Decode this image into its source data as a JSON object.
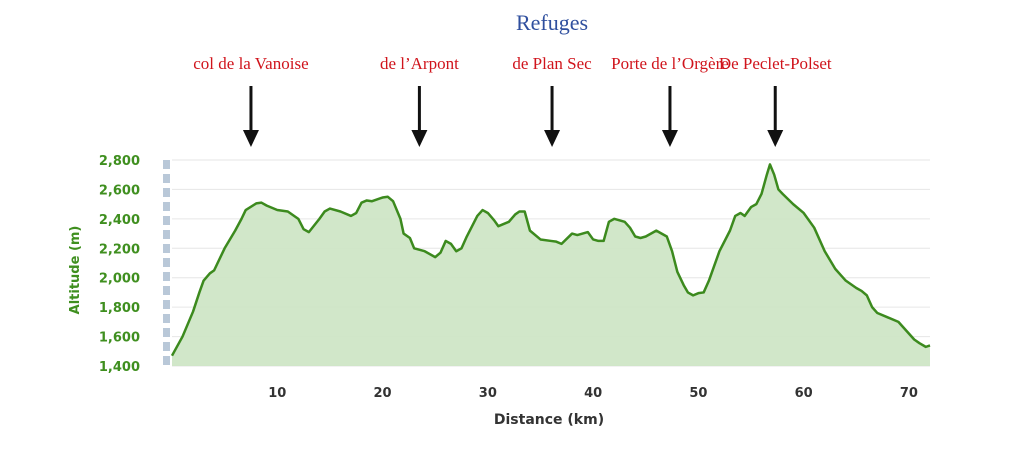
{
  "chart_data": {
    "type": "area",
    "title": "Refuges",
    "xlabel": "Distance (km)",
    "ylabel": "Altitude (m)",
    "xlim": [
      0,
      72
    ],
    "ylim": [
      1400,
      2800
    ],
    "x_ticks": [
      10,
      20,
      30,
      40,
      50,
      60,
      70
    ],
    "x_tick_labels": [
      "10",
      "20",
      "30",
      "40",
      "50",
      "60",
      "70"
    ],
    "y_ticks": [
      1400,
      1600,
      1800,
      2000,
      2200,
      2400,
      2600,
      2800
    ],
    "y_tick_labels": [
      "1,400",
      "1,600",
      "1,800",
      "2,000",
      "2,200",
      "2,400",
      "2,600",
      "2,800"
    ],
    "grid": true,
    "line_color": "#3c8a1e",
    "fill_color": "#cfe6c6",
    "points": [
      [
        0,
        1470
      ],
      [
        1,
        1600
      ],
      [
        2,
        1770
      ],
      [
        2.6,
        1900
      ],
      [
        3,
        1980
      ],
      [
        3.6,
        2030
      ],
      [
        4,
        2050
      ],
      [
        5,
        2200
      ],
      [
        6,
        2320
      ],
      [
        6.6,
        2400
      ],
      [
        7,
        2460
      ],
      [
        8,
        2505
      ],
      [
        8.5,
        2510
      ],
      [
        9,
        2490
      ],
      [
        10,
        2460
      ],
      [
        11,
        2450
      ],
      [
        12,
        2400
      ],
      [
        12.5,
        2330
      ],
      [
        13,
        2310
      ],
      [
        14,
        2400
      ],
      [
        14.5,
        2450
      ],
      [
        15,
        2470
      ],
      [
        16,
        2450
      ],
      [
        17,
        2420
      ],
      [
        17.5,
        2440
      ],
      [
        18,
        2510
      ],
      [
        18.5,
        2525
      ],
      [
        19,
        2520
      ],
      [
        20,
        2545
      ],
      [
        20.5,
        2550
      ],
      [
        21,
        2520
      ],
      [
        21.7,
        2400
      ],
      [
        22,
        2300
      ],
      [
        22.6,
        2270
      ],
      [
        23,
        2200
      ],
      [
        24,
        2180
      ],
      [
        25,
        2140
      ],
      [
        25.5,
        2170
      ],
      [
        26,
        2250
      ],
      [
        26.5,
        2230
      ],
      [
        27,
        2180
      ],
      [
        27.5,
        2200
      ],
      [
        28,
        2280
      ],
      [
        29,
        2420
      ],
      [
        29.5,
        2460
      ],
      [
        30,
        2440
      ],
      [
        30.6,
        2390
      ],
      [
        31,
        2350
      ],
      [
        32,
        2380
      ],
      [
        32.6,
        2430
      ],
      [
        33,
        2450
      ],
      [
        33.5,
        2450
      ],
      [
        34,
        2320
      ],
      [
        35,
        2260
      ],
      [
        36,
        2250
      ],
      [
        36.5,
        2245
      ],
      [
        37,
        2230
      ],
      [
        38,
        2300
      ],
      [
        38.5,
        2290
      ],
      [
        39,
        2300
      ],
      [
        39.5,
        2310
      ],
      [
        40,
        2260
      ],
      [
        40.5,
        2250
      ],
      [
        41,
        2250
      ],
      [
        41.5,
        2380
      ],
      [
        42,
        2400
      ],
      [
        42.5,
        2390
      ],
      [
        43,
        2380
      ],
      [
        43.5,
        2340
      ],
      [
        44,
        2280
      ],
      [
        44.5,
        2270
      ],
      [
        45,
        2280
      ],
      [
        46,
        2320
      ],
      [
        47,
        2280
      ],
      [
        47.5,
        2180
      ],
      [
        48,
        2040
      ],
      [
        48.6,
        1950
      ],
      [
        49,
        1900
      ],
      [
        49.5,
        1880
      ],
      [
        50,
        1895
      ],
      [
        50.5,
        1900
      ],
      [
        51,
        1980
      ],
      [
        51.5,
        2080
      ],
      [
        52,
        2180
      ],
      [
        53,
        2320
      ],
      [
        53.5,
        2420
      ],
      [
        54,
        2440
      ],
      [
        54.4,
        2420
      ],
      [
        55,
        2480
      ],
      [
        55.5,
        2500
      ],
      [
        56,
        2570
      ],
      [
        56.5,
        2700
      ],
      [
        56.8,
        2770
      ],
      [
        57.2,
        2700
      ],
      [
        57.6,
        2600
      ],
      [
        58,
        2570
      ],
      [
        59,
        2500
      ],
      [
        60,
        2440
      ],
      [
        61,
        2340
      ],
      [
        62,
        2180
      ],
      [
        63,
        2060
      ],
      [
        63.5,
        2020
      ],
      [
        64,
        1980
      ],
      [
        65,
        1930
      ],
      [
        65.5,
        1910
      ],
      [
        66,
        1880
      ],
      [
        66.5,
        1800
      ],
      [
        67,
        1760
      ],
      [
        68,
        1730
      ],
      [
        69,
        1700
      ],
      [
        70,
        1620
      ],
      [
        70.5,
        1580
      ],
      [
        71,
        1555
      ],
      [
        71.6,
        1530
      ],
      [
        72,
        1540
      ]
    ],
    "annotations": [
      {
        "label": "col de la Vanoise",
        "x": 7.5
      },
      {
        "label": "de l’Arpont",
        "x": 23.5
      },
      {
        "label": "de Plan Sec",
        "x": 36.1
      },
      {
        "label": "Porte de l’Orgère",
        "x": 47.3
      },
      {
        "label": "De Peclet-Polset",
        "x": 57.3
      }
    ]
  }
}
